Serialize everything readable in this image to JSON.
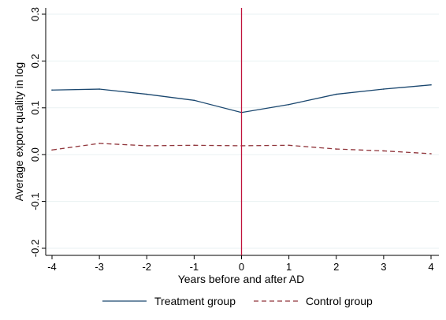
{
  "chart_data": {
    "type": "line",
    "title": "",
    "xlabel": "Years before and after AD",
    "ylabel": "Average export quality in log",
    "x": [
      -4,
      -3,
      -2,
      -1,
      0,
      1,
      2,
      3,
      4
    ],
    "xlim": [
      -4,
      4
    ],
    "ylim": [
      -0.2,
      0.3
    ],
    "x_ticks": [
      "-4",
      "-3",
      "-2",
      "-1",
      "0",
      "1",
      "2",
      "3",
      "4"
    ],
    "x_tick_values": [
      -4,
      -3,
      -2,
      -1,
      0,
      1,
      2,
      3,
      4
    ],
    "y_ticks": [
      "-0.2",
      "-0.1",
      "0.0",
      "0.1",
      "0.2",
      "0.3"
    ],
    "y_tick_values": [
      -0.2,
      -0.1,
      0.0,
      0.1,
      0.2,
      0.3
    ],
    "grid": "horizontal",
    "reference_line": {
      "x": 0,
      "color": "#c0143c"
    },
    "legend_position": "bottom",
    "series": [
      {
        "name": "Treatment group",
        "style": "solid",
        "color": "#1a476f",
        "values": [
          0.138,
          0.14,
          0.129,
          0.116,
          0.09,
          0.107,
          0.129,
          0.14,
          0.149
        ]
      },
      {
        "name": "Control group",
        "style": "dashed",
        "color": "#90353b",
        "values": [
          0.01,
          0.024,
          0.019,
          0.02,
          0.019,
          0.02,
          0.012,
          0.008,
          0.002
        ]
      }
    ]
  }
}
